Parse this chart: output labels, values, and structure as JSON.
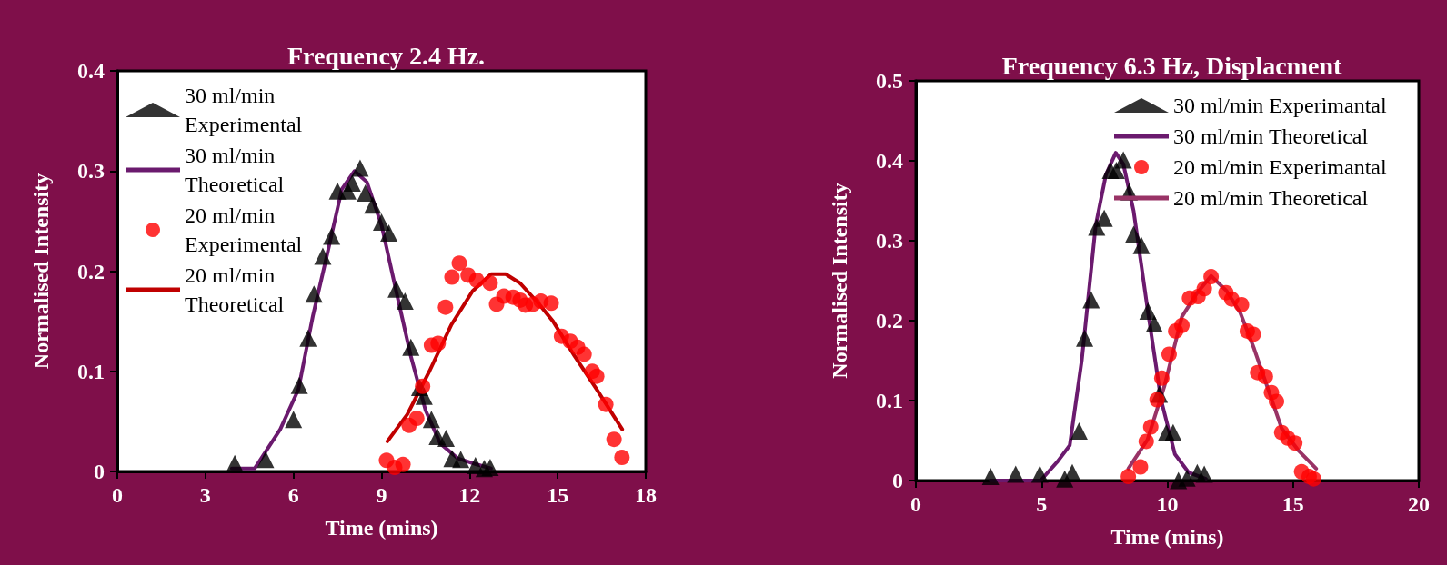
{
  "chart_data": [
    {
      "type": "scatter",
      "title": "Frequency 2.4 Hz.",
      "xlabel": "Time (mins)",
      "ylabel": "Normalised Intensity",
      "xlim": [
        0,
        18
      ],
      "xticks": [
        0,
        3,
        6,
        9,
        12,
        15,
        18
      ],
      "ylim": [
        0,
        0.4
      ],
      "yticks": [
        0,
        0.1,
        0.2,
        0.3,
        0.4
      ],
      "grid": false,
      "legend": "top left",
      "series": [
        {
          "name": "30 ml/min Experimental",
          "type": "scatter",
          "marker": "triangle",
          "color": "#000000",
          "x": [
            4.0,
            5.05,
            6.0,
            6.2,
            6.5,
            6.7,
            7.0,
            7.3,
            7.5,
            7.85,
            8.0,
            8.27,
            8.45,
            8.7,
            9.0,
            9.25,
            9.5,
            9.8,
            10.0,
            10.3,
            10.45,
            10.7,
            10.9,
            11.2,
            11.4,
            11.7,
            12.2,
            12.5,
            12.7
          ],
          "values": [
            0.008,
            0.012,
            0.052,
            0.086,
            0.133,
            0.177,
            0.215,
            0.235,
            0.28,
            0.28,
            0.288,
            0.303,
            0.278,
            0.266,
            0.249,
            0.238,
            0.182,
            0.17,
            0.124,
            0.084,
            0.075,
            0.052,
            0.035,
            0.033,
            0.013,
            0.012,
            0.006,
            0.003,
            0.004
          ]
        },
        {
          "name": "30 ml/min Theoretical",
          "type": "line",
          "marker": "none",
          "line_style": "solid",
          "color": "#6b1a6e",
          "x": [
            3.9,
            4.68,
            5.55,
            6.17,
            6.66,
            7.15,
            7.65,
            8.08,
            8.5,
            9.0,
            9.5,
            10.0,
            10.5,
            11.0,
            11.6,
            12.24,
            12.73
          ],
          "values": [
            0.003,
            0.003,
            0.042,
            0.082,
            0.155,
            0.217,
            0.282,
            0.3,
            0.289,
            0.246,
            0.18,
            0.115,
            0.061,
            0.028,
            0.013,
            0.007,
            0.003
          ]
        },
        {
          "name": "20 ml/min Experimental",
          "type": "scatter",
          "marker": "circle",
          "color": "#ff0000",
          "x": [
            9.17,
            9.45,
            9.73,
            9.94,
            10.2,
            10.4,
            10.7,
            10.93,
            11.18,
            11.4,
            11.65,
            11.95,
            12.24,
            12.7,
            12.92,
            13.17,
            13.48,
            13.72,
            13.9,
            14.16,
            14.43,
            14.78,
            15.13,
            15.43,
            15.68,
            15.9,
            16.18,
            16.33,
            16.64,
            16.92,
            17.19
          ],
          "values": [
            0.011,
            0.004,
            0.007,
            0.046,
            0.053,
            0.085,
            0.126,
            0.128,
            0.164,
            0.194,
            0.208,
            0.196,
            0.191,
            0.188,
            0.167,
            0.175,
            0.174,
            0.171,
            0.166,
            0.167,
            0.17,
            0.168,
            0.135,
            0.13,
            0.124,
            0.117,
            0.1,
            0.095,
            0.067,
            0.032,
            0.014
          ]
        },
        {
          "name": "20 ml/min Theoretical",
          "type": "line",
          "marker": "none",
          "line_style": "solid",
          "color": "#c00000",
          "x": [
            9.2,
            9.88,
            10.63,
            11.37,
            12.1,
            12.73,
            13.23,
            13.72,
            14.34,
            14.84,
            15.58,
            16.33,
            17.2
          ],
          "values": [
            0.03,
            0.057,
            0.1,
            0.146,
            0.18,
            0.197,
            0.197,
            0.188,
            0.168,
            0.15,
            0.115,
            0.082,
            0.042
          ]
        }
      ]
    },
    {
      "type": "scatter",
      "title": "Frequency 6.3 Hz, Displacment",
      "xlabel": "Time (mins)",
      "ylabel": "Normalised Intensity",
      "xlim": [
        0,
        20
      ],
      "xticks": [
        0,
        5,
        10,
        15,
        20
      ],
      "ylim": [
        0,
        0.5
      ],
      "yticks": [
        0,
        0.1,
        0.2,
        0.3,
        0.4,
        0.5
      ],
      "grid": false,
      "legend": "top right",
      "series": [
        {
          "name": "30 ml/min Experimantal",
          "type": "scatter",
          "marker": "triangle",
          "color": "#000000",
          "x": [
            2.97,
            3.97,
            4.93,
            5.92,
            6.22,
            6.49,
            6.71,
            6.97,
            7.19,
            7.49,
            7.74,
            7.97,
            8.25,
            8.48,
            8.66,
            8.97,
            9.23,
            9.48,
            9.68,
            9.96,
            10.23,
            10.44,
            10.78,
            11.19,
            11.47
          ],
          "values": [
            0.005,
            0.008,
            0.008,
            0.002,
            0.01,
            0.062,
            0.178,
            0.226,
            0.317,
            0.328,
            0.388,
            0.388,
            0.401,
            0.361,
            0.308,
            0.294,
            0.212,
            0.196,
            0.108,
            0.06,
            0.06,
            0,
            0.003,
            0.01,
            0.008
          ]
        },
        {
          "name": "30 ml/min Theoretical",
          "type": "line",
          "marker": "none",
          "line_style": "solid",
          "color": "#6b1a6e",
          "x": [
            2.97,
            4.96,
            5.64,
            6.12,
            6.6,
            7.15,
            7.56,
            7.95,
            8.25,
            8.66,
            9.21,
            9.75,
            10.3,
            10.85,
            11.53
          ],
          "values": [
            0,
            0,
            0.024,
            0.044,
            0.151,
            0.319,
            0.383,
            0.41,
            0.396,
            0.337,
            0.215,
            0.101,
            0.033,
            0.01,
            0.002
          ]
        },
        {
          "name": "20 ml/min Experimantal",
          "type": "scatter",
          "marker": "circle",
          "color": "#ff0000",
          "x": [
            8.45,
            8.93,
            9.16,
            9.34,
            9.59,
            9.78,
            10.07,
            10.33,
            10.58,
            10.88,
            11.22,
            11.47,
            11.74,
            12.33,
            12.56,
            12.95,
            13.18,
            13.42,
            13.59,
            13.9,
            14.14,
            14.34,
            14.55,
            14.79,
            15.07,
            15.34,
            15.64,
            15.82
          ],
          "values": [
            0.005,
            0.017,
            0.049,
            0.067,
            0.101,
            0.128,
            0.158,
            0.187,
            0.194,
            0.228,
            0.23,
            0.24,
            0.255,
            0.235,
            0.227,
            0.22,
            0.187,
            0.183,
            0.135,
            0.13,
            0.11,
            0.099,
            0.06,
            0.053,
            0.047,
            0.011,
            0.005,
            0.002
          ]
        },
        {
          "name": "20 ml/min Theoretical",
          "type": "line",
          "marker": "none",
          "line_style": "solid",
          "color": "#993366",
          "x": [
            8.45,
            9.21,
            9.89,
            10.58,
            11.19,
            11.74,
            12.36,
            12.9,
            13.45,
            14.0,
            14.55,
            15.23,
            15.92
          ],
          "values": [
            0.015,
            0.051,
            0.119,
            0.205,
            0.235,
            0.256,
            0.237,
            0.21,
            0.165,
            0.115,
            0.065,
            0.037,
            0.015
          ]
        }
      ]
    }
  ]
}
